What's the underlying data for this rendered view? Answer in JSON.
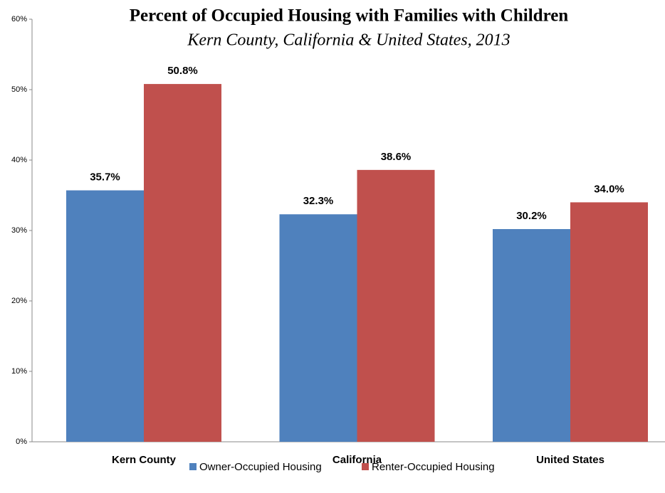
{
  "chart_data": {
    "type": "bar",
    "title": "Percent of Occupied Housing with Families with Children",
    "subtitle": "Kern County, California & United States, 2013",
    "categories": [
      "Kern County",
      "California",
      "United States"
    ],
    "series": [
      {
        "name": "Owner-Occupied Housing",
        "color": "#4f81bd",
        "values": [
          35.7,
          32.3,
          30.2
        ],
        "value_labels": [
          "35.7%",
          "32.3%",
          "30.2%"
        ]
      },
      {
        "name": "Renter-Occupied Housing",
        "color": "#c0504d",
        "values": [
          50.8,
          38.6,
          34.0
        ],
        "value_labels": [
          "50.8%",
          "38.6%",
          "34.0%"
        ]
      }
    ],
    "ylim": [
      0,
      60
    ],
    "yticks": [
      {
        "value": 0,
        "label": "0%"
      },
      {
        "value": 10,
        "label": "10%"
      },
      {
        "value": 20,
        "label": "20%"
      },
      {
        "value": 30,
        "label": "30%"
      },
      {
        "value": 40,
        "label": "40%"
      },
      {
        "value": 50,
        "label": "50%"
      },
      {
        "value": 60,
        "label": "60%"
      }
    ],
    "grid": false,
    "legend": "bottom"
  }
}
